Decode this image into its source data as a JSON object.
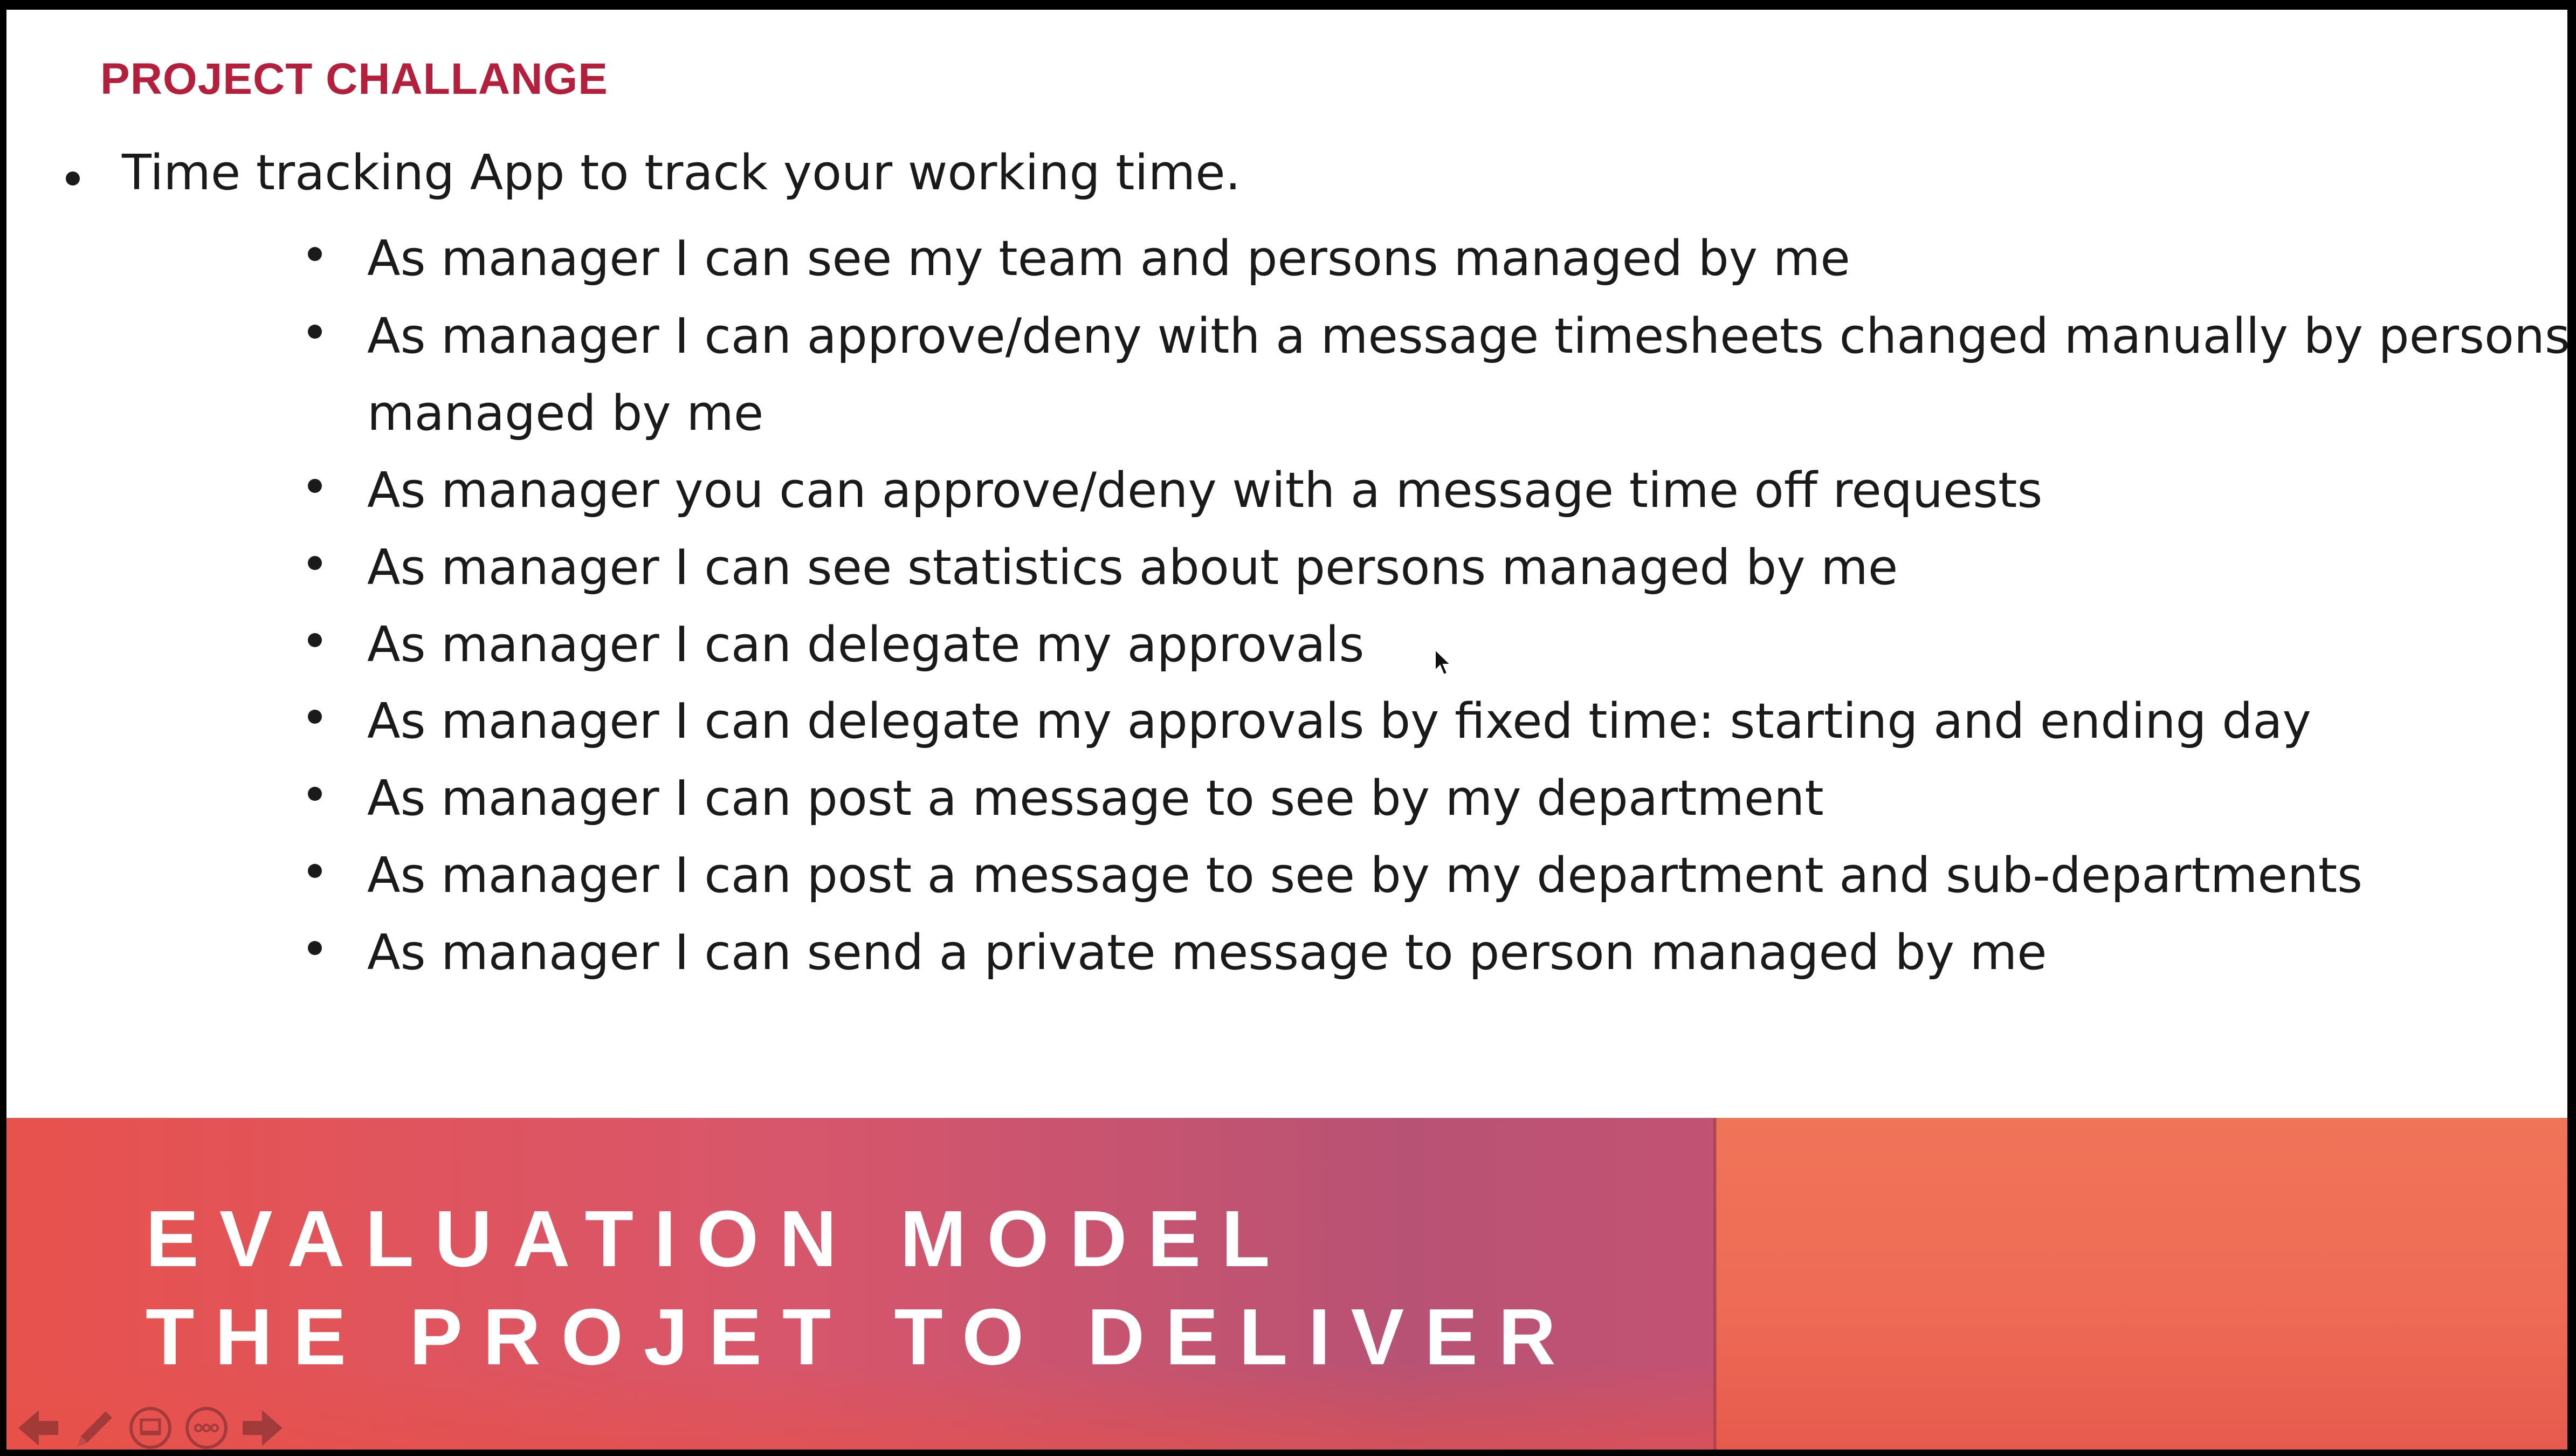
{
  "slide": {
    "title": "PROJECT CHALLANGE",
    "main_bullet": "Time tracking App to track your working time.",
    "sub_bullets": [
      "As manager I can see my team and persons managed by me",
      "As manager I can approve/deny with a message timesheets changed manually by persons managed by me",
      "As manager you can approve/deny with a message time off requests",
      "As manager I can see statistics about persons managed by me",
      "As manager I can delegate my approvals",
      "As manager I can delegate my approvals by fixed time: starting and ending day",
      "As manager I can post a message to see by my department",
      "As manager I can post a message to see by my department and sub-departments",
      "As manager I can send a private message to person managed by me"
    ]
  },
  "banner": {
    "line1": "EVALUATION MODEL",
    "line2": "THE PROJET TO DELIVER"
  },
  "controls": {
    "icons": [
      "arrow-left-icon",
      "pen-icon",
      "slide-view-icon",
      "more-options-icon",
      "arrow-right-icon"
    ]
  },
  "colors": {
    "title": "#b51f3c",
    "banner_left": "#d8566b",
    "banner_right": "#ee6a55",
    "text": "#1a1a1a"
  }
}
